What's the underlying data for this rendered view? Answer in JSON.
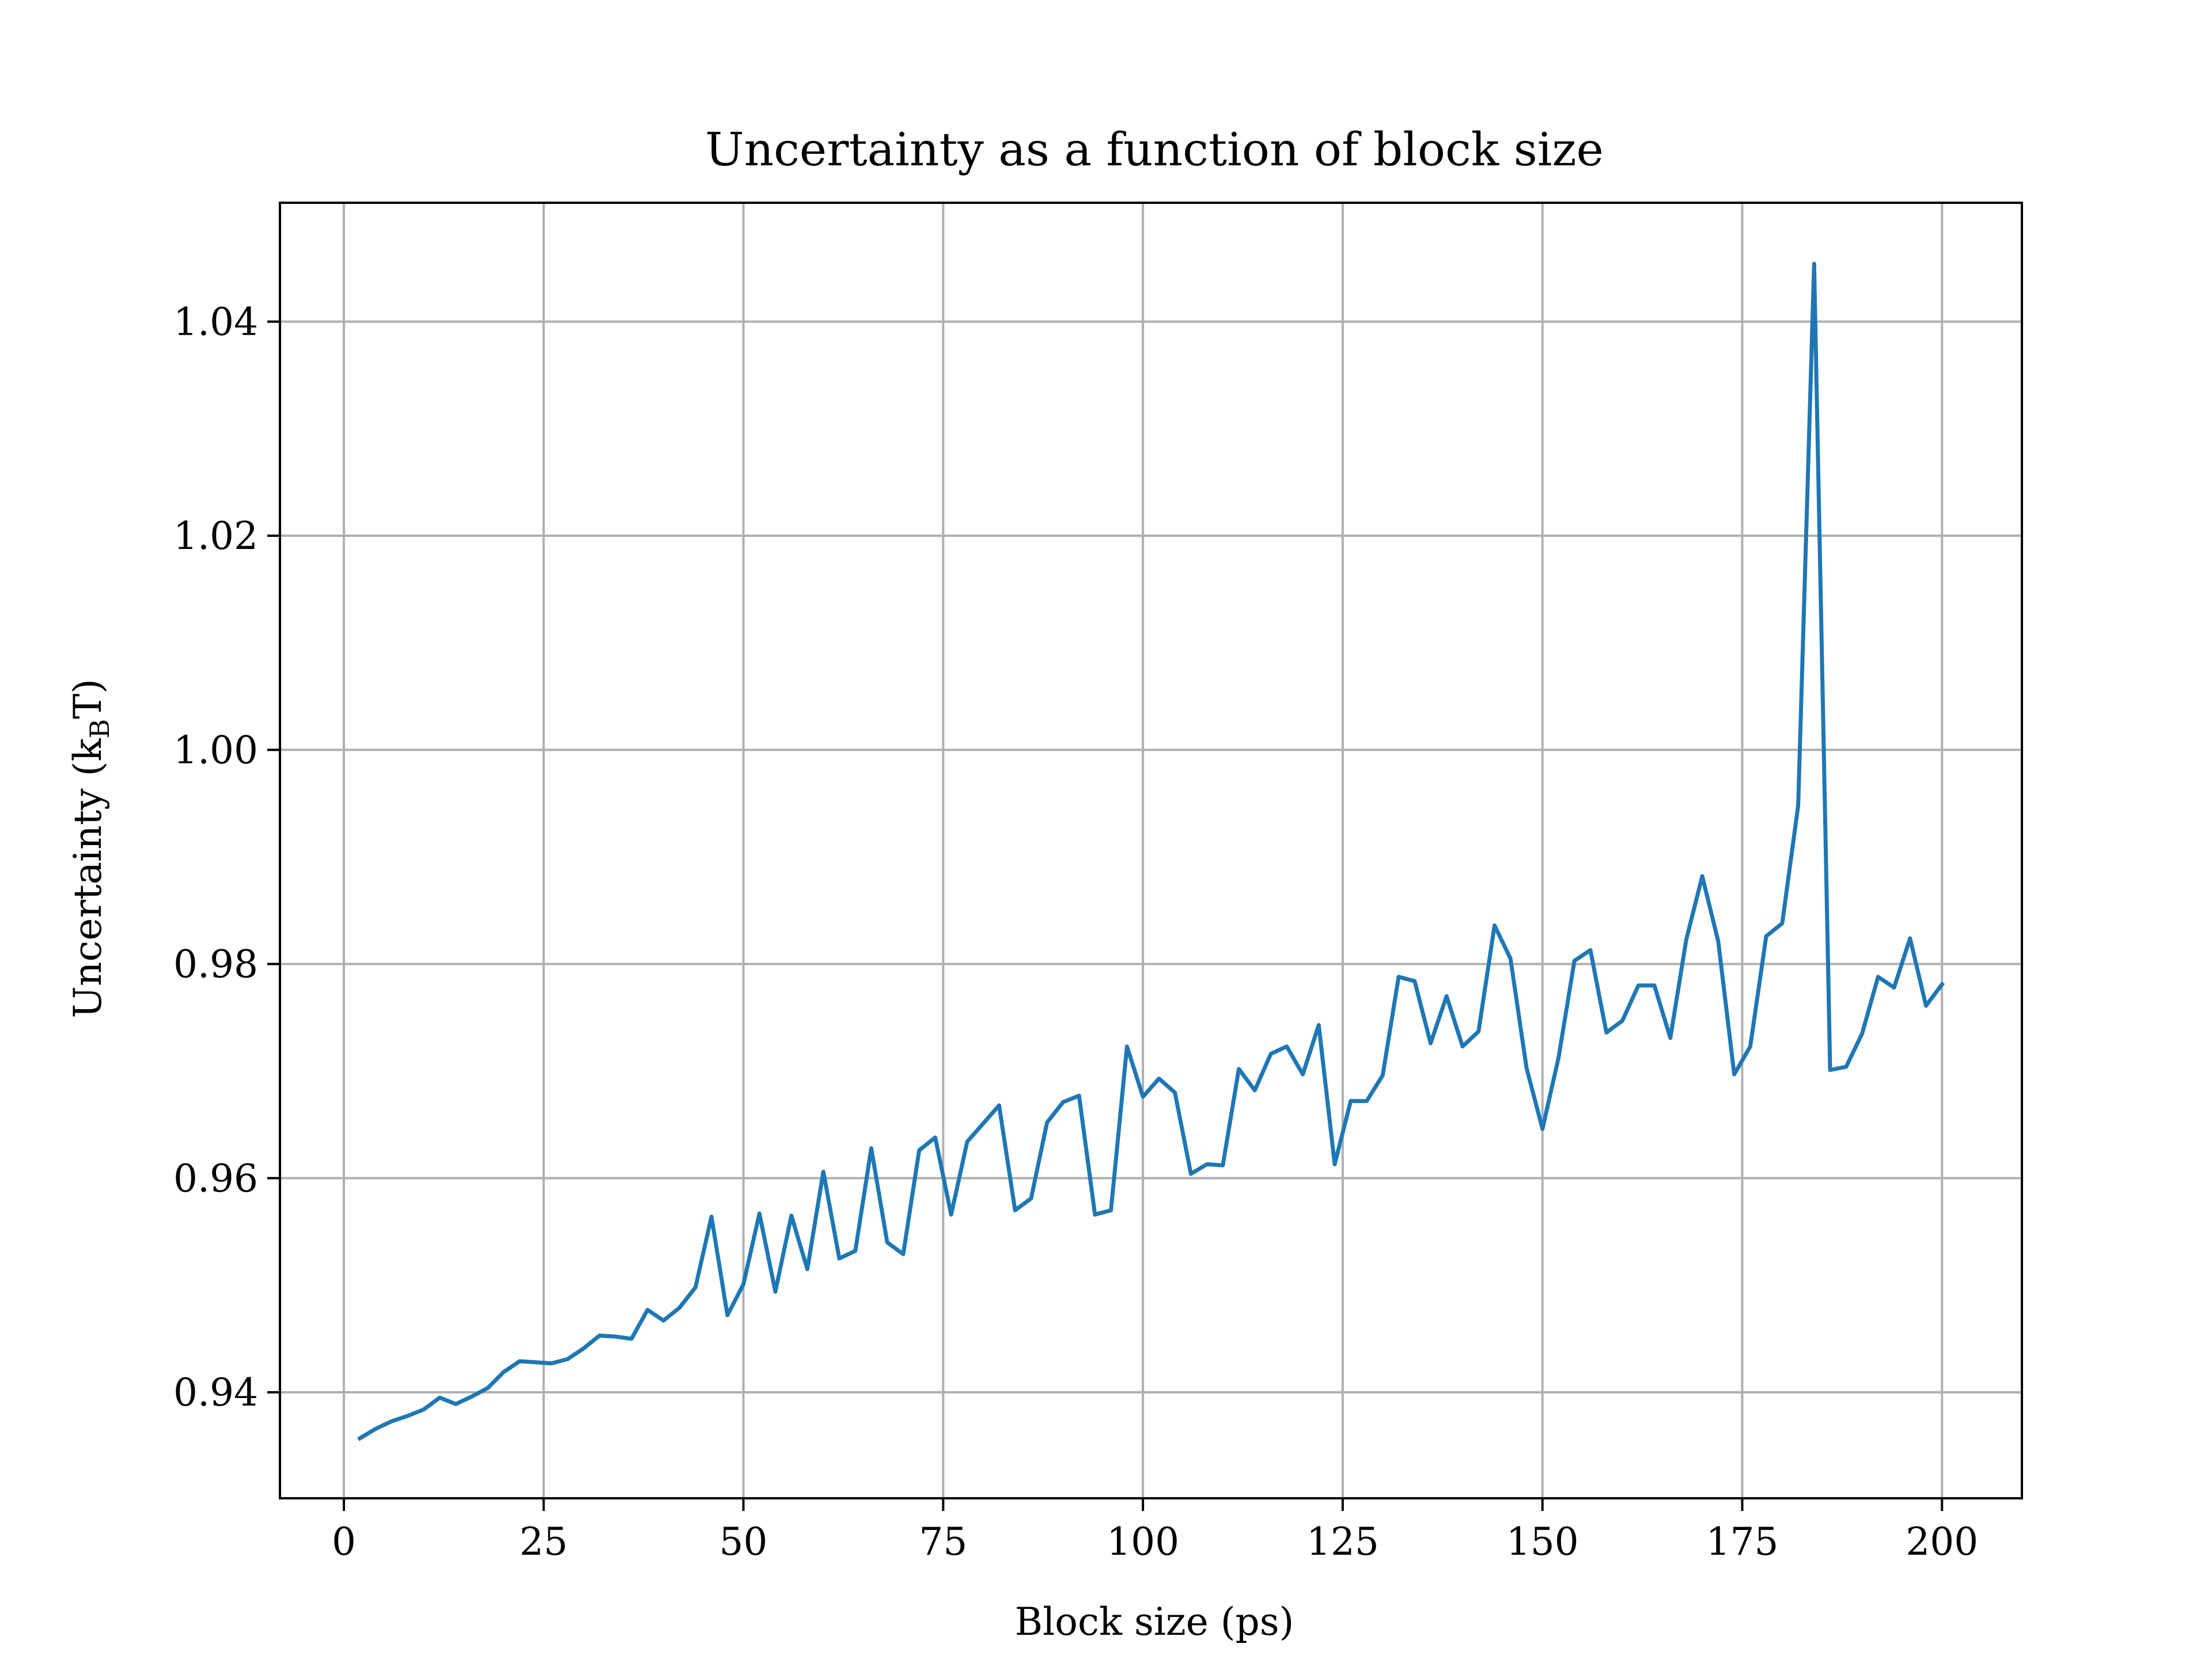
{
  "chart_data": {
    "type": "line",
    "title": "Uncertainty as a function of block size",
    "xlabel": "Block size (ps)",
    "ylabel_prefix": "Uncertainty (k",
    "ylabel_sub": "B",
    "ylabel_suffix": "T)",
    "xlim": [
      -8,
      210
    ],
    "ylim": [
      0.9301,
      1.0511
    ],
    "xticks": [
      0,
      25,
      50,
      75,
      100,
      125,
      150,
      175,
      200
    ],
    "xtick_labels": [
      "0",
      "25",
      "50",
      "75",
      "100",
      "125",
      "150",
      "175",
      "200"
    ],
    "yticks": [
      0.94,
      0.96,
      0.98,
      1.0,
      1.02,
      1.04
    ],
    "ytick_labels": [
      "0.94",
      "0.96",
      "0.98",
      "1.00",
      "1.02",
      "1.04"
    ],
    "grid": true,
    "line_color": "#1f77b4",
    "series": [
      {
        "x": [
          2,
          4,
          6,
          8,
          10,
          12,
          14,
          16,
          18,
          20,
          22,
          24,
          26,
          28,
          30,
          32,
          34,
          36,
          38,
          40,
          42,
          44,
          46,
          48,
          50,
          52,
          54,
          56,
          58,
          60,
          62,
          64,
          66,
          68,
          70,
          72,
          74,
          76,
          78,
          80,
          82,
          84,
          86,
          88,
          90,
          92,
          94,
          96,
          98,
          100,
          102,
          104,
          106,
          108,
          110,
          112,
          114,
          116,
          118,
          120,
          122,
          124,
          126,
          128,
          130,
          132,
          134,
          136,
          138,
          140,
          142,
          144,
          146,
          148,
          150,
          152,
          154,
          156,
          158,
          160,
          162,
          164,
          166,
          168,
          170,
          172,
          174,
          176,
          178,
          180,
          182,
          184,
          186,
          188,
          190,
          192,
          194,
          196,
          198,
          200
        ],
        "values": [
          0.9357,
          0.9366,
          0.9373,
          0.9378,
          0.9384,
          0.9395,
          0.9389,
          0.9396,
          0.9404,
          0.9419,
          0.9429,
          0.9428,
          0.9427,
          0.9431,
          0.9441,
          0.9453,
          0.9452,
          0.945,
          0.9477,
          0.9467,
          0.9479,
          0.9498,
          0.9564,
          0.9472,
          0.9501,
          0.9567,
          0.9494,
          0.9565,
          0.9515,
          0.9606,
          0.9525,
          0.9532,
          0.9628,
          0.954,
          0.9529,
          0.9626,
          0.9638,
          0.9566,
          0.9634,
          0.9651,
          0.9668,
          0.957,
          0.9581,
          0.9652,
          0.9671,
          0.9677,
          0.9566,
          0.957,
          0.9723,
          0.9676,
          0.9693,
          0.968,
          0.9604,
          0.9613,
          0.9612,
          0.9702,
          0.9682,
          0.9716,
          0.9723,
          0.9697,
          0.9743,
          0.9613,
          0.9672,
          0.9672,
          0.9696,
          0.9788,
          0.9784,
          0.9726,
          0.977,
          0.9723,
          0.9737,
          0.9836,
          0.9805,
          0.9703,
          0.9646,
          0.9712,
          0.9803,
          0.9813,
          0.9736,
          0.9747,
          0.978,
          0.978,
          0.9731,
          0.9823,
          0.9882,
          0.9821,
          0.9697,
          0.9723,
          0.9826,
          0.9838,
          0.9948,
          1.0454,
          0.9701,
          0.9704,
          0.9735,
          0.9788,
          0.9778,
          0.9824,
          0.9761,
          0.9781
        ]
      }
    ]
  }
}
